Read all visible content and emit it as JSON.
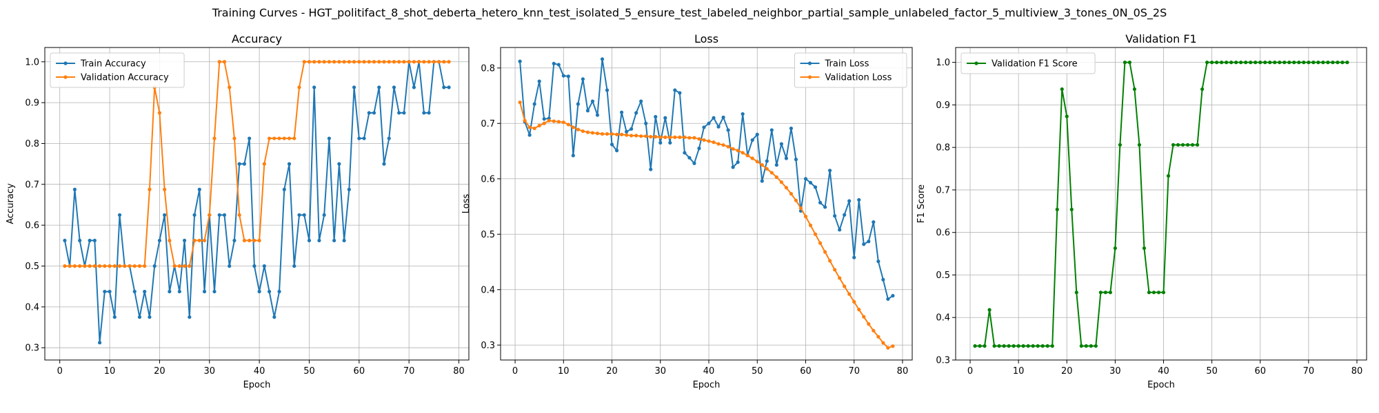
{
  "figure_title": "Training Curves - HGT_politifact_8_shot_deberta_hetero_knn_test_isolated_5_ensure_test_labeled_neighbor_partial_sample_unlabeled_factor_5_multiview_3_tones_0N_0S_2S",
  "colors": {
    "blue": "#1f77b4",
    "orange": "#ff7f0e",
    "green": "#008000",
    "grid": "#b0b0b0"
  },
  "chart_data": [
    {
      "type": "line",
      "title": "Accuracy",
      "xlabel": "Epoch",
      "ylabel": "Accuracy",
      "xlim": [
        -3,
        82
      ],
      "ylim": [
        0.27,
        1.035
      ],
      "xticks": [
        0,
        10,
        20,
        30,
        40,
        50,
        60,
        70,
        80
      ],
      "yticks": [
        0.3,
        0.4,
        0.5,
        0.6,
        0.7,
        0.8,
        0.9,
        1.0
      ],
      "ytick_labels": [
        "0.3",
        "0.4",
        "0.5",
        "0.6",
        "0.7",
        "0.8",
        "0.9",
        "1.0"
      ],
      "grid": true,
      "legend_position": "upper-left",
      "x_start": 1,
      "series": [
        {
          "name": "Train Accuracy",
          "color": "#1f77b4",
          "values": [
            0.5625,
            0.5,
            0.6875,
            0.5625,
            0.5,
            0.5625,
            0.5625,
            0.3125,
            0.4375,
            0.4375,
            0.375,
            0.625,
            0.5,
            0.5,
            0.4375,
            0.375,
            0.4375,
            0.375,
            0.5,
            0.5625,
            0.625,
            0.4375,
            0.5,
            0.4375,
            0.5625,
            0.375,
            0.625,
            0.6875,
            0.4375,
            0.625,
            0.4375,
            0.625,
            0.625,
            0.5,
            0.5625,
            0.75,
            0.75,
            0.8125,
            0.5,
            0.4375,
            0.5,
            0.4375,
            0.375,
            0.4375,
            0.6875,
            0.75,
            0.5,
            0.625,
            0.625,
            0.5625,
            0.9375,
            0.5625,
            0.625,
            0.8125,
            0.5625,
            0.75,
            0.5625,
            0.6875,
            0.9375,
            0.8125,
            0.8125,
            0.875,
            0.875,
            0.9375,
            0.75,
            0.8125,
            0.9375,
            0.875,
            0.875,
            1.0,
            0.9375,
            1.0,
            0.875,
            0.875,
            1.0,
            1.0,
            0.9375,
            0.9375
          ]
        },
        {
          "name": "Validation Accuracy",
          "color": "#ff7f0e",
          "values": [
            0.5,
            0.5,
            0.5,
            0.5,
            0.5,
            0.5,
            0.5,
            0.5,
            0.5,
            0.5,
            0.5,
            0.5,
            0.5,
            0.5,
            0.5,
            0.5,
            0.5,
            0.6875,
            0.9375,
            0.875,
            0.6875,
            0.5625,
            0.5,
            0.5,
            0.5,
            0.5,
            0.5625,
            0.5625,
            0.5625,
            0.625,
            0.8125,
            1.0,
            1.0,
            0.9375,
            0.8125,
            0.625,
            0.5625,
            0.5625,
            0.5625,
            0.5625,
            0.75,
            0.8125,
            0.8125,
            0.8125,
            0.8125,
            0.8125,
            0.8125,
            0.9375,
            1.0,
            1.0,
            1.0,
            1.0,
            1.0,
            1.0,
            1.0,
            1.0,
            1.0,
            1.0,
            1.0,
            1.0,
            1.0,
            1.0,
            1.0,
            1.0,
            1.0,
            1.0,
            1.0,
            1.0,
            1.0,
            1.0,
            1.0,
            1.0,
            1.0,
            1.0,
            1.0,
            1.0,
            1.0,
            1.0
          ]
        }
      ]
    },
    {
      "type": "line",
      "title": "Loss",
      "xlabel": "Epoch",
      "ylabel": "Loss",
      "xlim": [
        -3,
        82
      ],
      "ylim": [
        0.273,
        0.837
      ],
      "xticks": [
        0,
        10,
        20,
        30,
        40,
        50,
        60,
        70,
        80
      ],
      "yticks": [
        0.3,
        0.4,
        0.5,
        0.6,
        0.7,
        0.8
      ],
      "ytick_labels": [
        "0.3",
        "0.4",
        "0.5",
        "0.6",
        "0.7",
        "0.8"
      ],
      "grid": true,
      "legend_position": "upper-right",
      "x_start": 1,
      "series": [
        {
          "name": "Train Loss",
          "color": "#1f77b4",
          "values": [
            0.812,
            0.703,
            0.679,
            0.735,
            0.776,
            0.708,
            0.709,
            0.808,
            0.806,
            0.786,
            0.785,
            0.642,
            0.735,
            0.78,
            0.723,
            0.74,
            0.715,
            0.816,
            0.76,
            0.662,
            0.651,
            0.72,
            0.685,
            0.69,
            0.719,
            0.74,
            0.7,
            0.617,
            0.712,
            0.665,
            0.71,
            0.665,
            0.76,
            0.755,
            0.647,
            0.638,
            0.628,
            0.655,
            0.693,
            0.7,
            0.71,
            0.694,
            0.711,
            0.688,
            0.621,
            0.63,
            0.717,
            0.643,
            0.67,
            0.68,
            0.596,
            0.632,
            0.688,
            0.625,
            0.663,
            0.637,
            0.691,
            0.635,
            0.542,
            0.6,
            0.593,
            0.585,
            0.557,
            0.549,
            0.615,
            0.533,
            0.508,
            0.535,
            0.56,
            0.458,
            0.562,
            0.482,
            0.487,
            0.522,
            0.451,
            0.418,
            0.383,
            0.389
          ]
        },
        {
          "name": "Validation Loss",
          "color": "#ff7f0e",
          "values": [
            0.738,
            0.705,
            0.693,
            0.691,
            0.696,
            0.7,
            0.705,
            0.704,
            0.703,
            0.702,
            0.698,
            0.693,
            0.689,
            0.686,
            0.684,
            0.683,
            0.682,
            0.681,
            0.681,
            0.681,
            0.68,
            0.68,
            0.679,
            0.678,
            0.678,
            0.677,
            0.677,
            0.676,
            0.676,
            0.675,
            0.675,
            0.675,
            0.675,
            0.675,
            0.675,
            0.674,
            0.674,
            0.672,
            0.67,
            0.668,
            0.666,
            0.663,
            0.661,
            0.658,
            0.654,
            0.651,
            0.647,
            0.642,
            0.637,
            0.631,
            0.625,
            0.618,
            0.611,
            0.603,
            0.594,
            0.584,
            0.573,
            0.561,
            0.547,
            0.532,
            0.516,
            0.5,
            0.484,
            0.468,
            0.452,
            0.436,
            0.421,
            0.406,
            0.392,
            0.378,
            0.364,
            0.351,
            0.338,
            0.326,
            0.315,
            0.304,
            0.295,
            0.298
          ]
        }
      ]
    },
    {
      "type": "line",
      "title": "Validation F1",
      "xlabel": "Epoch",
      "ylabel": "F1 Score",
      "xlim": [
        -3,
        82
      ],
      "ylim": [
        0.3,
        1.035
      ],
      "xticks": [
        0,
        10,
        20,
        30,
        40,
        50,
        60,
        70,
        80
      ],
      "yticks": [
        0.3,
        0.4,
        0.5,
        0.6,
        0.7,
        0.8,
        0.9,
        1.0
      ],
      "ytick_labels": [
        "0.3",
        "0.4",
        "0.5",
        "0.6",
        "0.7",
        "0.8",
        "0.9",
        "1.0"
      ],
      "grid": true,
      "legend_position": "upper-left",
      "x_start": 1,
      "series": [
        {
          "name": "Validation F1 Score",
          "color": "#008000",
          "values": [
            0.333,
            0.333,
            0.333,
            0.418,
            0.333,
            0.333,
            0.333,
            0.333,
            0.333,
            0.333,
            0.333,
            0.333,
            0.333,
            0.333,
            0.333,
            0.333,
            0.333,
            0.654,
            0.937,
            0.873,
            0.654,
            0.459,
            0.333,
            0.333,
            0.333,
            0.333,
            0.459,
            0.459,
            0.459,
            0.563,
            0.806,
            1.0,
            1.0,
            0.937,
            0.806,
            0.563,
            0.459,
            0.459,
            0.459,
            0.459,
            0.733,
            0.806,
            0.806,
            0.806,
            0.806,
            0.806,
            0.806,
            0.937,
            1.0,
            1.0,
            1.0,
            1.0,
            1.0,
            1.0,
            1.0,
            1.0,
            1.0,
            1.0,
            1.0,
            1.0,
            1.0,
            1.0,
            1.0,
            1.0,
            1.0,
            1.0,
            1.0,
            1.0,
            1.0,
            1.0,
            1.0,
            1.0,
            1.0,
            1.0,
            1.0,
            1.0,
            1.0,
            1.0
          ]
        }
      ]
    }
  ]
}
